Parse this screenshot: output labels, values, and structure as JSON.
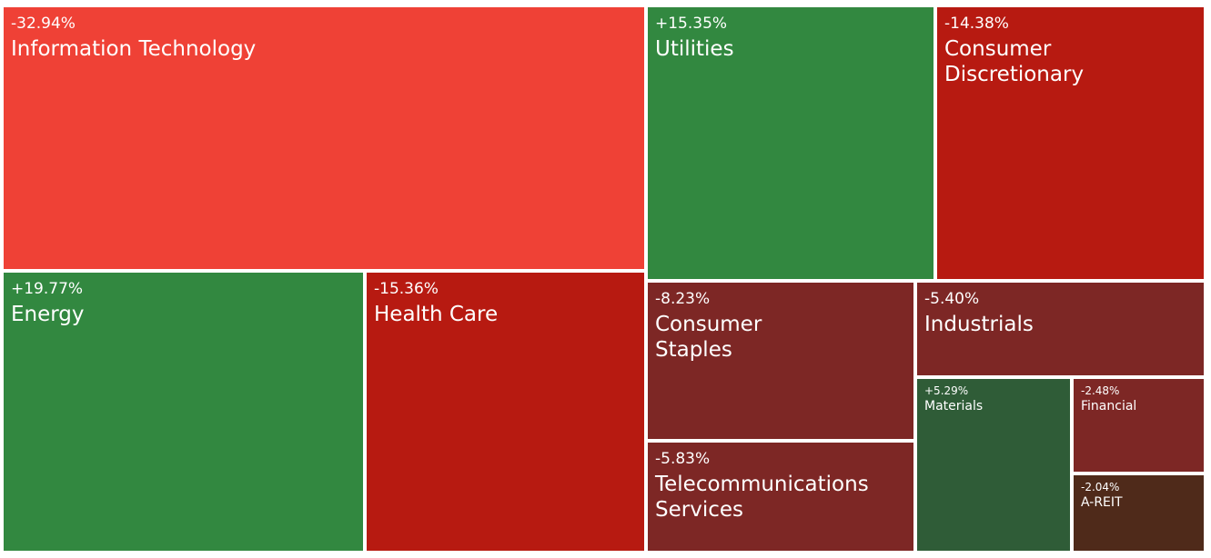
{
  "chart_data": {
    "type": "treemap",
    "title": "",
    "colors": {
      "loss_light": "#ef4136",
      "loss_strong": "#b71a11",
      "loss_mid": "#7d2725",
      "loss_dark": "#4f2a1a",
      "gain_strong": "#328840",
      "gain_dark": "#2f5c37"
    },
    "tiles": [
      {
        "label": "Information Technology",
        "change": "-32.94%",
        "value": -32.94,
        "color": "#ef4136"
      },
      {
        "label": "Energy",
        "change": "+19.77%",
        "value": 19.77,
        "color": "#328840"
      },
      {
        "label": "Health Care",
        "change": "-15.36%",
        "value": -15.36,
        "color": "#b71a11"
      },
      {
        "label": "Utilities",
        "change": "+15.35%",
        "value": 15.35,
        "color": "#328840"
      },
      {
        "label": "Consumer Discretionary",
        "change": "-14.38%",
        "value": -14.38,
        "color": "#b71a11"
      },
      {
        "label": "Consumer Staples",
        "change": "-8.23%",
        "value": -8.23,
        "color": "#7d2725"
      },
      {
        "label": "Telecommunications Services",
        "change": "-5.83%",
        "value": -5.83,
        "color": "#7d2725"
      },
      {
        "label": "Industrials",
        "change": "-5.40%",
        "value": -5.4,
        "color": "#7d2725"
      },
      {
        "label": "Materials",
        "change": "+5.29%",
        "value": 5.29,
        "color": "#2f5c37"
      },
      {
        "label": "Financial",
        "change": "-2.48%",
        "value": -2.48,
        "color": "#7d2725"
      },
      {
        "label": "A-REIT",
        "change": "-2.04%",
        "value": -2.04,
        "color": "#4f2a1a"
      }
    ]
  }
}
